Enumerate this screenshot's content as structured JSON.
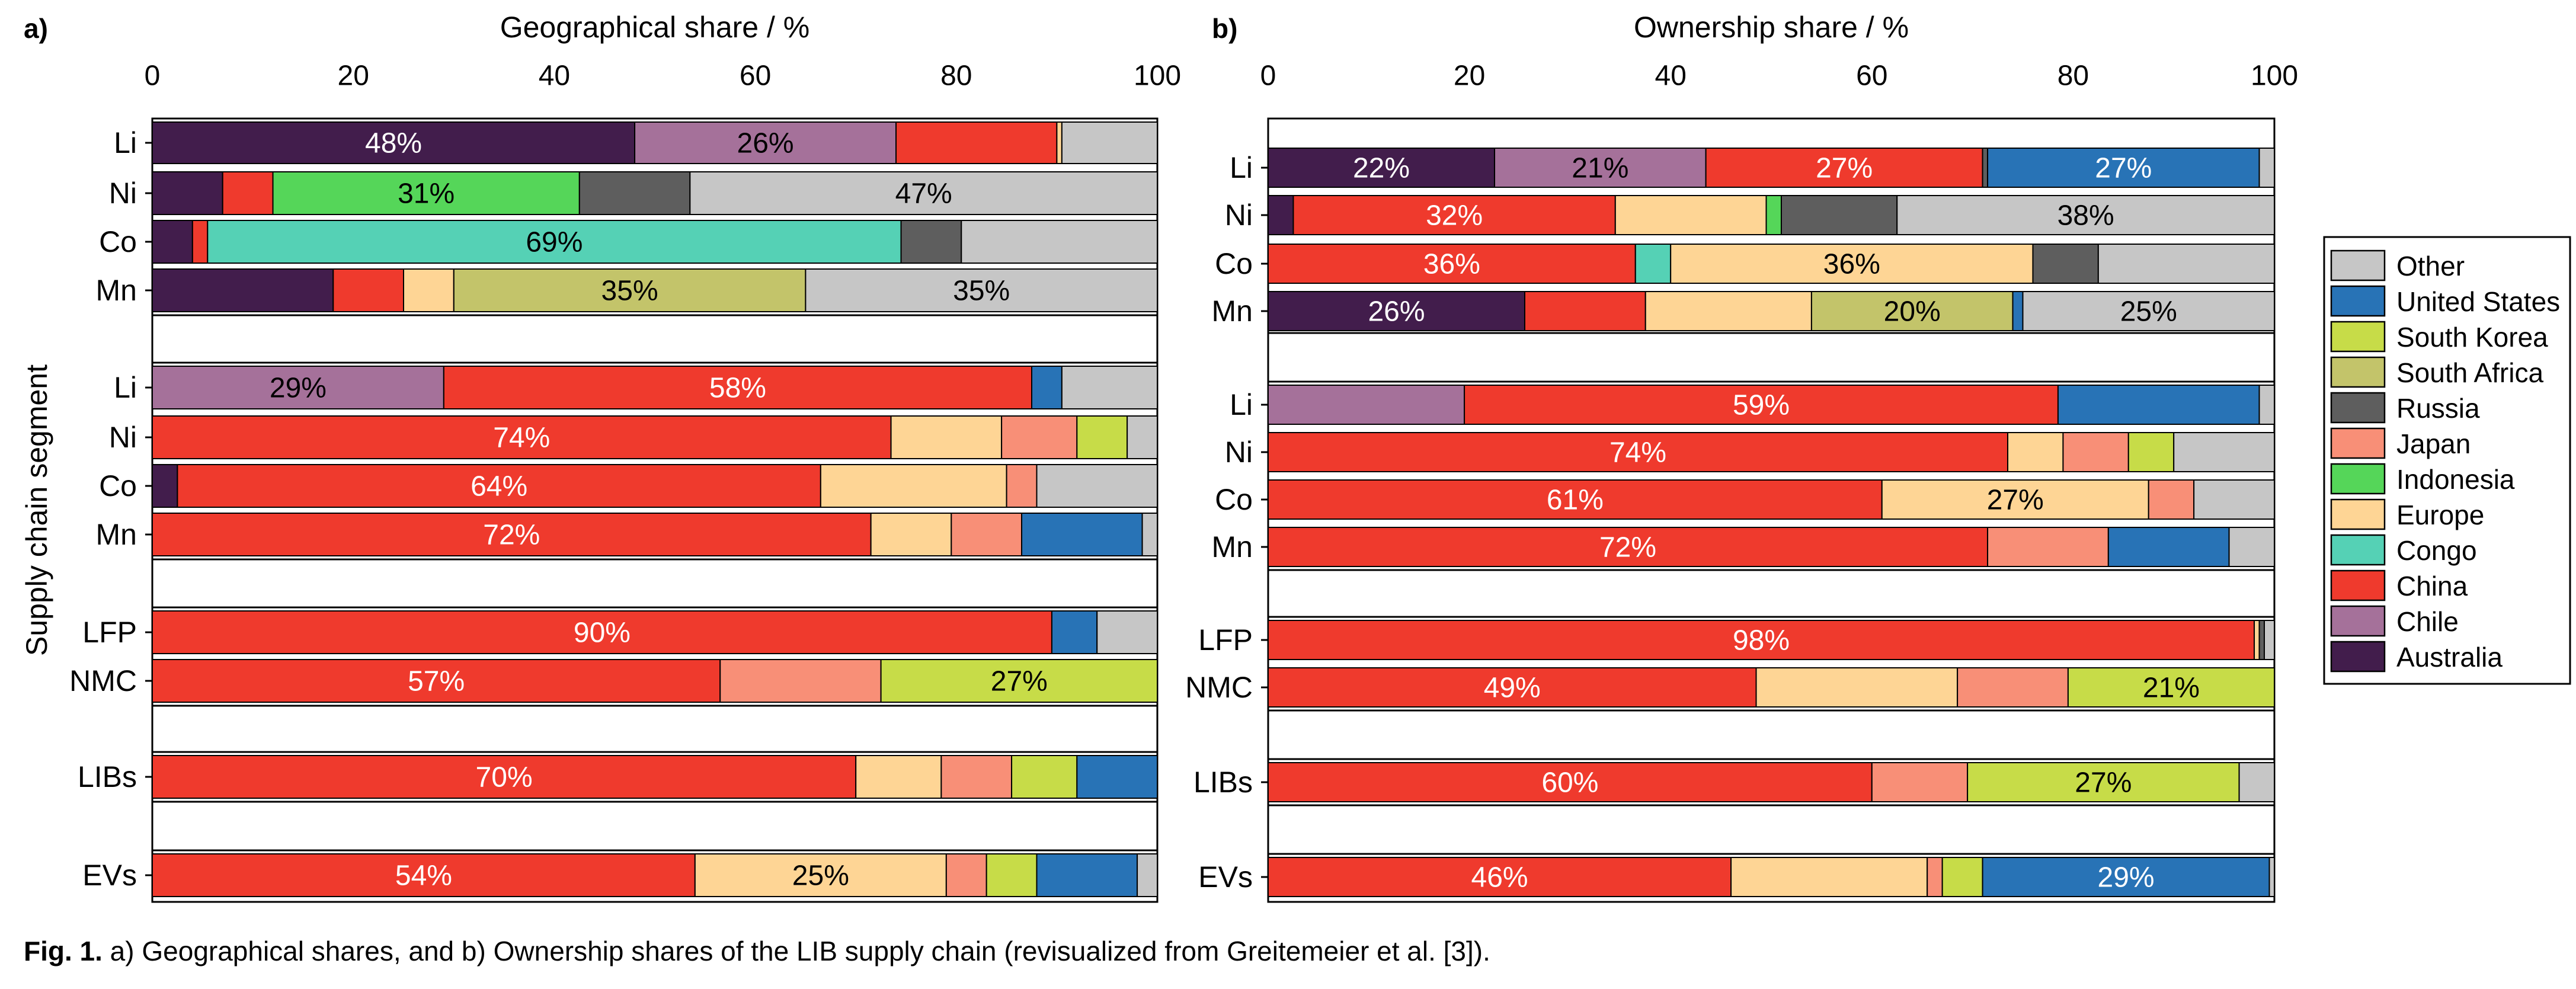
{
  "colors": {
    "Other": "#c6c6c6",
    "United States": "#2873b6",
    "South Korea": "#c7dc48",
    "South Africa": "#c3c46a",
    "Russia": "#5e5e5e",
    "Japan": "#f88f77",
    "Indonesia": "#55d659",
    "Europe": "#fed595",
    "Congo": "#55d1b5",
    "China": "#ef3a2d",
    "Chile": "#a5719a",
    "Australia": "#421d4c"
  },
  "caption": {
    "label": "Fig. 1.",
    "text": " a) Geographical shares, and b) Ownership shares of the LIB supply chain (revisualized from Greitemeier et al. [3])."
  },
  "legend": {
    "items": [
      "Other",
      "United States",
      "South Korea",
      "South Africa",
      "Russia",
      "Japan",
      "Indonesia",
      "Europe",
      "Congo",
      "China",
      "Chile",
      "Australia"
    ]
  },
  "chart_data": [
    {
      "type": "bar",
      "orientation": "horizontal",
      "stacked": true,
      "panel_label": "a)",
      "title": "Geographical share / %",
      "xlabel": "Geographical share / %",
      "ylabel": "Supply chain segment",
      "xlim": [
        0,
        100
      ],
      "xticks": [
        0,
        20,
        40,
        60,
        80,
        100
      ],
      "groups": [
        {
          "rows": [
            {
              "category": "Li",
              "segments": [
                {
                  "name": "Australia",
                  "value": 48,
                  "label": "48%"
                },
                {
                  "name": "Chile",
                  "value": 26,
                  "label": "26%"
                },
                {
                  "name": "China",
                  "value": 16
                },
                {
                  "name": "Europe",
                  "value": 0.5
                },
                {
                  "name": "Other",
                  "value": 9.5
                }
              ]
            },
            {
              "category": "Ni",
              "segments": [
                {
                  "name": "Australia",
                  "value": 7
                },
                {
                  "name": "China",
                  "value": 5
                },
                {
                  "name": "Indonesia",
                  "value": 30.5,
                  "label": "31%"
                },
                {
                  "name": "Russia",
                  "value": 11
                },
                {
                  "name": "Other",
                  "value": 46.5,
                  "label": "47%"
                }
              ]
            },
            {
              "category": "Co",
              "segments": [
                {
                  "name": "Australia",
                  "value": 4
                },
                {
                  "name": "China",
                  "value": 1.5
                },
                {
                  "name": "Congo",
                  "value": 69,
                  "label": "69%"
                },
                {
                  "name": "Russia",
                  "value": 6
                },
                {
                  "name": "Other",
                  "value": 19.5
                }
              ]
            },
            {
              "category": "Mn",
              "segments": [
                {
                  "name": "Australia",
                  "value": 18
                },
                {
                  "name": "China",
                  "value": 7
                },
                {
                  "name": "Europe",
                  "value": 5
                },
                {
                  "name": "South Africa",
                  "value": 35,
                  "label": "35%"
                },
                {
                  "name": "Other",
                  "value": 35,
                  "label": "35%"
                }
              ]
            }
          ]
        },
        {
          "rows": [
            {
              "category": "Li",
              "segments": [
                {
                  "name": "Chile",
                  "value": 29,
                  "label": "29%"
                },
                {
                  "name": "China",
                  "value": 58.5,
                  "label": "58%"
                },
                {
                  "name": "United States",
                  "value": 3
                },
                {
                  "name": "Other",
                  "value": 9.5
                }
              ]
            },
            {
              "category": "Ni",
              "segments": [
                {
                  "name": "China",
                  "value": 73.5,
                  "label": "74%"
                },
                {
                  "name": "Europe",
                  "value": 11
                },
                {
                  "name": "Japan",
                  "value": 7.5
                },
                {
                  "name": "South Korea",
                  "value": 5
                },
                {
                  "name": "Other",
                  "value": 3
                }
              ]
            },
            {
              "category": "Co",
              "segments": [
                {
                  "name": "Australia",
                  "value": 2.5
                },
                {
                  "name": "China",
                  "value": 64,
                  "label": "64%"
                },
                {
                  "name": "Europe",
                  "value": 18.5
                },
                {
                  "name": "Japan",
                  "value": 3
                },
                {
                  "name": "Other",
                  "value": 12
                }
              ]
            },
            {
              "category": "Mn",
              "segments": [
                {
                  "name": "China",
                  "value": 71.5,
                  "label": "72%"
                },
                {
                  "name": "Europe",
                  "value": 8
                },
                {
                  "name": "Japan",
                  "value": 7
                },
                {
                  "name": "United States",
                  "value": 12
                },
                {
                  "name": "Other",
                  "value": 1.5
                }
              ]
            }
          ]
        },
        {
          "rows": [
            {
              "category": "LFP",
              "segments": [
                {
                  "name": "China",
                  "value": 89.5,
                  "label": "90%"
                },
                {
                  "name": "United States",
                  "value": 4.5
                },
                {
                  "name": "Other",
                  "value": 6
                }
              ]
            },
            {
              "category": "NMC",
              "segments": [
                {
                  "name": "China",
                  "value": 56.5,
                  "label": "57%"
                },
                {
                  "name": "Japan",
                  "value": 16
                },
                {
                  "name": "South Korea",
                  "value": 27.5,
                  "label": "27%"
                }
              ]
            }
          ]
        },
        {
          "rows": [
            {
              "category": "LIBs",
              "segments": [
                {
                  "name": "China",
                  "value": 70,
                  "label": "70%"
                },
                {
                  "name": "Europe",
                  "value": 8.5
                },
                {
                  "name": "Japan",
                  "value": 7
                },
                {
                  "name": "South Korea",
                  "value": 6.5
                },
                {
                  "name": "United States",
                  "value": 8
                }
              ]
            }
          ]
        },
        {
          "rows": [
            {
              "category": "EVs",
              "segments": [
                {
                  "name": "China",
                  "value": 54,
                  "label": "54%"
                },
                {
                  "name": "Europe",
                  "value": 25,
                  "label": "25%"
                },
                {
                  "name": "Japan",
                  "value": 4
                },
                {
                  "name": "South Korea",
                  "value": 5
                },
                {
                  "name": "United States",
                  "value": 10
                },
                {
                  "name": "Other",
                  "value": 2
                }
              ]
            }
          ]
        }
      ]
    },
    {
      "type": "bar",
      "orientation": "horizontal",
      "stacked": true,
      "panel_label": "b)",
      "title": "Ownership share / %",
      "xlabel": "Ownership share / %",
      "xlim": [
        0,
        100
      ],
      "xticks": [
        0,
        20,
        40,
        60,
        80,
        100
      ],
      "groups": [
        {
          "rows": [
            {
              "category": "Li",
              "segments": [
                {
                  "name": "Australia",
                  "value": 22.5,
                  "label": "22%"
                },
                {
                  "name": "Chile",
                  "value": 21,
                  "label": "21%"
                },
                {
                  "name": "China",
                  "value": 27.5,
                  "label": "27%"
                },
                {
                  "name": "Russia",
                  "value": 0.5
                },
                {
                  "name": "United States",
                  "value": 27,
                  "label": "27%"
                },
                {
                  "name": "Other",
                  "value": 1.5
                }
              ]
            },
            {
              "category": "Ni",
              "segments": [
                {
                  "name": "Australia",
                  "value": 2.5
                },
                {
                  "name": "China",
                  "value": 32,
                  "label": "32%"
                },
                {
                  "name": "Europe",
                  "value": 15
                },
                {
                  "name": "Indonesia",
                  "value": 1.5
                },
                {
                  "name": "Russia",
                  "value": 11.5
                },
                {
                  "name": "Other",
                  "value": 37.5,
                  "label": "38%"
                }
              ]
            },
            {
              "category": "Co",
              "segments": [
                {
                  "name": "China",
                  "value": 36.5,
                  "label": "36%"
                },
                {
                  "name": "Congo",
                  "value": 3.5
                },
                {
                  "name": "Europe",
                  "value": 36,
                  "label": "36%"
                },
                {
                  "name": "Russia",
                  "value": 6.5
                },
                {
                  "name": "Other",
                  "value": 17.5
                }
              ]
            },
            {
              "category": "Mn",
              "segments": [
                {
                  "name": "Australia",
                  "value": 25.5,
                  "label": "26%"
                },
                {
                  "name": "China",
                  "value": 12
                },
                {
                  "name": "Europe",
                  "value": 16.5
                },
                {
                  "name": "South Africa",
                  "value": 20,
                  "label": "20%"
                },
                {
                  "name": "United States",
                  "value": 1
                },
                {
                  "name": "Other",
                  "value": 25,
                  "label": "25%"
                }
              ]
            }
          ]
        },
        {
          "rows": [
            {
              "category": "Li",
              "segments": [
                {
                  "name": "Chile",
                  "value": 19.5
                },
                {
                  "name": "China",
                  "value": 59,
                  "label": "59%"
                },
                {
                  "name": "United States",
                  "value": 20
                },
                {
                  "name": "Other",
                  "value": 1.5
                }
              ]
            },
            {
              "category": "Ni",
              "segments": [
                {
                  "name": "China",
                  "value": 73.5,
                  "label": "74%"
                },
                {
                  "name": "Europe",
                  "value": 5.5
                },
                {
                  "name": "Japan",
                  "value": 6.5
                },
                {
                  "name": "South Korea",
                  "value": 4.5
                },
                {
                  "name": "Other",
                  "value": 10
                }
              ]
            },
            {
              "category": "Co",
              "segments": [
                {
                  "name": "China",
                  "value": 61,
                  "label": "61%"
                },
                {
                  "name": "Europe",
                  "value": 26.5,
                  "label": "27%"
                },
                {
                  "name": "Japan",
                  "value": 4.5
                },
                {
                  "name": "Other",
                  "value": 8
                }
              ]
            },
            {
              "category": "Mn",
              "segments": [
                {
                  "name": "China",
                  "value": 71.5,
                  "label": "72%"
                },
                {
                  "name": "Japan",
                  "value": 12
                },
                {
                  "name": "United States",
                  "value": 12
                },
                {
                  "name": "Other",
                  "value": 4.5
                }
              ]
            }
          ]
        },
        {
          "rows": [
            {
              "category": "LFP",
              "segments": [
                {
                  "name": "China",
                  "value": 98,
                  "label": "98%"
                },
                {
                  "name": "Europe",
                  "value": 0.5
                },
                {
                  "name": "Russia",
                  "value": 0.5
                },
                {
                  "name": "Other",
                  "value": 1
                }
              ]
            },
            {
              "category": "NMC",
              "segments": [
                {
                  "name": "China",
                  "value": 48.5,
                  "label": "49%"
                },
                {
                  "name": "Europe",
                  "value": 20
                },
                {
                  "name": "Japan",
                  "value": 11
                },
                {
                  "name": "South Korea",
                  "value": 20.5,
                  "label": "21%"
                }
              ]
            }
          ]
        },
        {
          "rows": [
            {
              "category": "LIBs",
              "segments": [
                {
                  "name": "China",
                  "value": 60,
                  "label": "60%"
                },
                {
                  "name": "Japan",
                  "value": 9.5
                },
                {
                  "name": "South Korea",
                  "value": 27,
                  "label": "27%"
                },
                {
                  "name": "Other",
                  "value": 3.5
                }
              ]
            }
          ]
        },
        {
          "rows": [
            {
              "category": "EVs",
              "segments": [
                {
                  "name": "China",
                  "value": 46,
                  "label": "46%"
                },
                {
                  "name": "Europe",
                  "value": 19.5
                },
                {
                  "name": "Japan",
                  "value": 1.5
                },
                {
                  "name": "South Korea",
                  "value": 4
                },
                {
                  "name": "United States",
                  "value": 28.5,
                  "label": "29%"
                },
                {
                  "name": "Other",
                  "value": 0.5
                }
              ]
            }
          ]
        }
      ]
    }
  ]
}
